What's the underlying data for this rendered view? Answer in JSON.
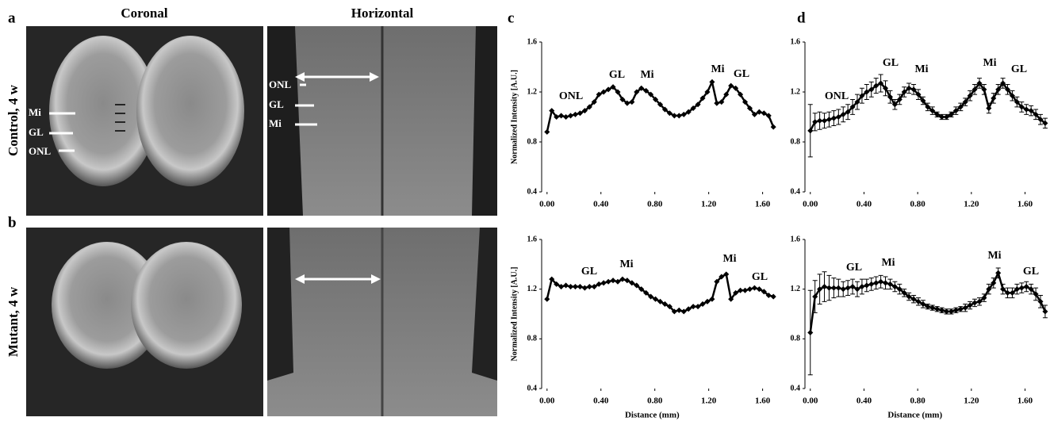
{
  "figure": {
    "panels": [
      "a",
      "b",
      "c",
      "d"
    ],
    "columns": [
      "Coronal",
      "Horizontal"
    ],
    "rows": [
      "Control, 4 w",
      "Mutant, 4 w"
    ],
    "coronal_labels": [
      "Mi",
      "GL",
      "ONL"
    ],
    "horizontal_labels": [
      "ONL",
      "GL",
      "Mi"
    ]
  },
  "chart_data": [
    {
      "type": "line",
      "color": "#000000",
      "ylabel": "Normalized Intensity [A.U.]",
      "xlim": [
        -0.04,
        1.72
      ],
      "ylim": [
        0.4,
        1.6
      ],
      "yticks": [
        0.4,
        0.8,
        1.2,
        1.6
      ],
      "xticks": [
        {
          "value": 0,
          "label": "0.00"
        },
        {
          "value": 0.4,
          "label": "0.40"
        },
        {
          "value": 0.8,
          "label": "0.80"
        },
        {
          "value": 1.2,
          "label": "1.20"
        },
        {
          "value": 1.6,
          "label": "1.60"
        }
      ],
      "x": [
        0,
        0.035,
        0.07,
        0.105,
        0.14,
        0.175,
        0.21,
        0.245,
        0.28,
        0.315,
        0.35,
        0.385,
        0.42,
        0.455,
        0.49,
        0.525,
        0.56,
        0.595,
        0.63,
        0.665,
        0.7,
        0.735,
        0.77,
        0.805,
        0.84,
        0.875,
        0.91,
        0.945,
        0.98,
        1.015,
        1.05,
        1.085,
        1.12,
        1.155,
        1.19,
        1.225,
        1.26,
        1.295,
        1.33,
        1.365,
        1.4,
        1.435,
        1.47,
        1.505,
        1.54,
        1.575,
        1.61,
        1.645,
        1.68
      ],
      "values": [
        0.88,
        1.05,
        1.0,
        1.01,
        1.0,
        1.01,
        1.02,
        1.03,
        1.05,
        1.08,
        1.12,
        1.18,
        1.2,
        1.22,
        1.24,
        1.2,
        1.14,
        1.11,
        1.12,
        1.2,
        1.23,
        1.21,
        1.18,
        1.14,
        1.1,
        1.06,
        1.03,
        1.01,
        1.01,
        1.02,
        1.04,
        1.07,
        1.1,
        1.15,
        1.2,
        1.28,
        1.11,
        1.12,
        1.18,
        1.25,
        1.23,
        1.18,
        1.12,
        1.07,
        1.02,
        1.04,
        1.03,
        1.01,
        0.92
      ],
      "annotations": [
        "ONL",
        "GL",
        "Mi",
        "Mi",
        "GL"
      ]
    },
    {
      "type": "line",
      "color": "#000000",
      "ylabel": "Normalized Intensity [A.U.]",
      "xlabel": "Distance (mm)",
      "xlim": [
        -0.04,
        1.72
      ],
      "ylim": [
        0.4,
        1.6
      ],
      "yticks": [
        0.4,
        0.8,
        1.2,
        1.6
      ],
      "xticks": [
        {
          "value": 0,
          "label": "0.00"
        },
        {
          "value": 0.4,
          "label": "0.40"
        },
        {
          "value": 0.8,
          "label": "0.80"
        },
        {
          "value": 1.2,
          "label": "1.20"
        },
        {
          "value": 1.6,
          "label": "1.60"
        }
      ],
      "x": [
        0,
        0.035,
        0.07,
        0.105,
        0.14,
        0.175,
        0.21,
        0.245,
        0.28,
        0.315,
        0.35,
        0.385,
        0.42,
        0.455,
        0.49,
        0.525,
        0.56,
        0.595,
        0.63,
        0.665,
        0.7,
        0.735,
        0.77,
        0.805,
        0.84,
        0.875,
        0.91,
        0.945,
        0.98,
        1.015,
        1.05,
        1.085,
        1.12,
        1.155,
        1.19,
        1.225,
        1.26,
        1.295,
        1.33,
        1.365,
        1.4,
        1.435,
        1.47,
        1.505,
        1.54,
        1.575,
        1.61,
        1.645,
        1.68
      ],
      "values": [
        1.12,
        1.28,
        1.24,
        1.22,
        1.23,
        1.22,
        1.22,
        1.22,
        1.21,
        1.22,
        1.22,
        1.24,
        1.25,
        1.26,
        1.27,
        1.26,
        1.28,
        1.27,
        1.25,
        1.23,
        1.2,
        1.17,
        1.14,
        1.12,
        1.1,
        1.08,
        1.06,
        1.02,
        1.03,
        1.02,
        1.04,
        1.06,
        1.06,
        1.08,
        1.1,
        1.12,
        1.26,
        1.3,
        1.32,
        1.12,
        1.17,
        1.19,
        1.19,
        1.2,
        1.21,
        1.2,
        1.18,
        1.15,
        1.14
      ],
      "annotations": [
        "GL",
        "Mi",
        "Mi",
        "GL"
      ]
    },
    {
      "type": "errorline",
      "color": "#000000",
      "xlim": [
        -0.04,
        1.78
      ],
      "ylim": [
        0.4,
        1.6
      ],
      "yticks": [
        0.4,
        0.8,
        1.2,
        1.6
      ],
      "xticks": [
        {
          "value": 0,
          "label": "0.00"
        },
        {
          "value": 0.4,
          "label": "0.40"
        },
        {
          "value": 0.8,
          "label": "0.80"
        },
        {
          "value": 1.2,
          "label": "1.20"
        },
        {
          "value": 1.6,
          "label": "1.60"
        }
      ],
      "x": [
        0,
        0.035,
        0.07,
        0.105,
        0.14,
        0.175,
        0.21,
        0.245,
        0.28,
        0.315,
        0.35,
        0.385,
        0.42,
        0.455,
        0.49,
        0.525,
        0.56,
        0.595,
        0.63,
        0.665,
        0.7,
        0.735,
        0.77,
        0.805,
        0.84,
        0.875,
        0.91,
        0.945,
        0.98,
        1.015,
        1.05,
        1.085,
        1.12,
        1.155,
        1.19,
        1.225,
        1.26,
        1.295,
        1.33,
        1.365,
        1.4,
        1.435,
        1.47,
        1.505,
        1.54,
        1.575,
        1.61,
        1.645,
        1.68,
        1.715,
        1.75
      ],
      "values": [
        0.89,
        0.96,
        0.97,
        0.97,
        0.98,
        0.99,
        1.0,
        1.02,
        1.04,
        1.08,
        1.12,
        1.17,
        1.2,
        1.22,
        1.25,
        1.27,
        1.23,
        1.16,
        1.1,
        1.14,
        1.2,
        1.23,
        1.22,
        1.18,
        1.13,
        1.08,
        1.05,
        1.02,
        1.0,
        1.0,
        1.02,
        1.05,
        1.08,
        1.12,
        1.17,
        1.22,
        1.27,
        1.22,
        1.07,
        1.15,
        1.22,
        1.27,
        1.22,
        1.17,
        1.12,
        1.08,
        1.06,
        1.05,
        1.02,
        0.98,
        0.95
      ],
      "errors": [
        0.21,
        0.07,
        0.07,
        0.06,
        0.06,
        0.06,
        0.06,
        0.06,
        0.06,
        0.06,
        0.06,
        0.06,
        0.06,
        0.06,
        0.06,
        0.07,
        0.06,
        0.05,
        0.04,
        0.04,
        0.04,
        0.04,
        0.04,
        0.04,
        0.03,
        0.03,
        0.03,
        0.02,
        0.02,
        0.02,
        0.02,
        0.03,
        0.03,
        0.03,
        0.04,
        0.04,
        0.04,
        0.04,
        0.04,
        0.04,
        0.04,
        0.04,
        0.04,
        0.04,
        0.04,
        0.04,
        0.04,
        0.04,
        0.04,
        0.04,
        0.04
      ],
      "annotations": [
        "ONL",
        "GL",
        "Mi",
        "Mi",
        "GL"
      ]
    },
    {
      "type": "errorline",
      "color": "#000000",
      "xlabel": "Distance (mm)",
      "xlim": [
        -0.04,
        1.78
      ],
      "ylim": [
        0.4,
        1.6
      ],
      "yticks": [
        0.4,
        0.8,
        1.2,
        1.6
      ],
      "xticks": [
        {
          "value": 0,
          "label": "0.00"
        },
        {
          "value": 0.4,
          "label": "0.40"
        },
        {
          "value": 0.8,
          "label": "0.80"
        },
        {
          "value": 1.2,
          "label": "1.20"
        },
        {
          "value": 1.6,
          "label": "1.60"
        }
      ],
      "x": [
        0,
        0.035,
        0.07,
        0.105,
        0.14,
        0.175,
        0.21,
        0.245,
        0.28,
        0.315,
        0.35,
        0.385,
        0.42,
        0.455,
        0.49,
        0.525,
        0.56,
        0.595,
        0.63,
        0.665,
        0.7,
        0.735,
        0.77,
        0.805,
        0.84,
        0.875,
        0.91,
        0.945,
        0.98,
        1.015,
        1.05,
        1.085,
        1.12,
        1.155,
        1.19,
        1.225,
        1.26,
        1.295,
        1.33,
        1.365,
        1.4,
        1.435,
        1.47,
        1.505,
        1.54,
        1.575,
        1.61,
        1.645,
        1.68,
        1.715,
        1.75
      ],
      "values": [
        0.85,
        1.14,
        1.2,
        1.22,
        1.21,
        1.21,
        1.21,
        1.2,
        1.21,
        1.22,
        1.2,
        1.22,
        1.23,
        1.24,
        1.25,
        1.26,
        1.25,
        1.24,
        1.22,
        1.2,
        1.17,
        1.14,
        1.12,
        1.1,
        1.08,
        1.06,
        1.05,
        1.04,
        1.03,
        1.02,
        1.02,
        1.03,
        1.04,
        1.05,
        1.07,
        1.09,
        1.1,
        1.13,
        1.2,
        1.25,
        1.33,
        1.2,
        1.17,
        1.17,
        1.2,
        1.21,
        1.22,
        1.2,
        1.16,
        1.1,
        1.02
      ],
      "errors": [
        0.34,
        0.13,
        0.12,
        0.12,
        0.1,
        0.08,
        0.07,
        0.06,
        0.06,
        0.06,
        0.06,
        0.06,
        0.05,
        0.05,
        0.05,
        0.05,
        0.05,
        0.04,
        0.04,
        0.04,
        0.03,
        0.03,
        0.03,
        0.03,
        0.03,
        0.02,
        0.02,
        0.02,
        0.02,
        0.02,
        0.02,
        0.02,
        0.02,
        0.03,
        0.03,
        0.03,
        0.03,
        0.03,
        0.04,
        0.04,
        0.04,
        0.04,
        0.04,
        0.04,
        0.04,
        0.04,
        0.04,
        0.04,
        0.05,
        0.05,
        0.05
      ],
      "annotations": [
        "GL",
        "Mi",
        "Mi",
        "GL"
      ]
    }
  ]
}
